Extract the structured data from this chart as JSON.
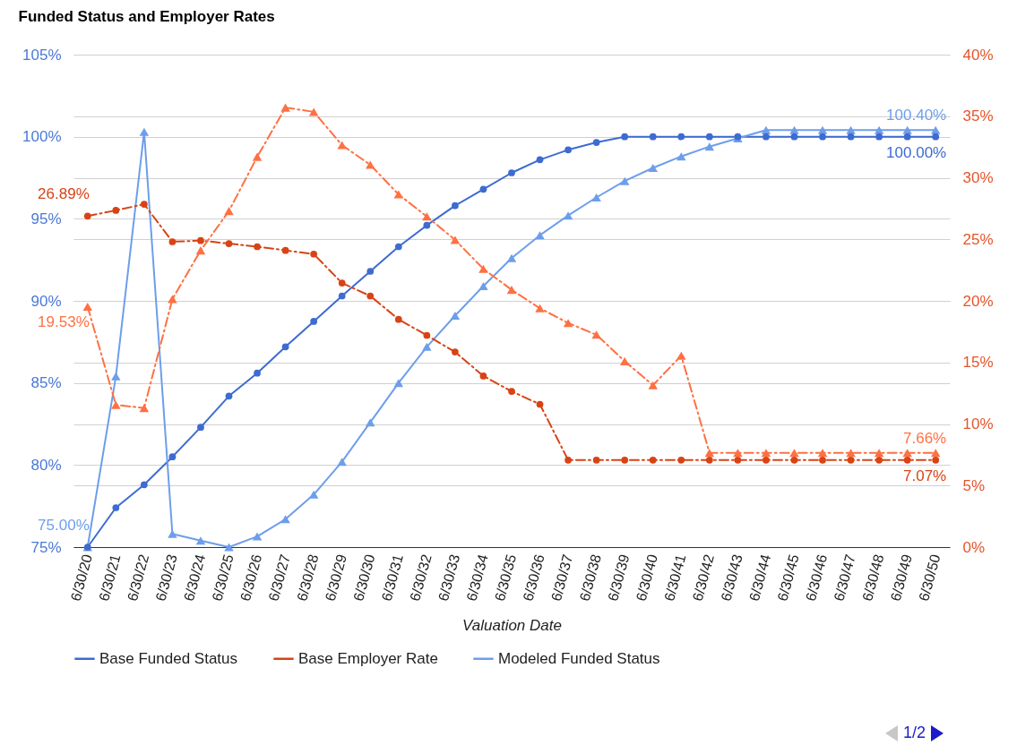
{
  "chart_data": {
    "type": "line",
    "title": "Funded Status and Employer Rates",
    "xlabel": "Valuation Date",
    "categories": [
      "6/30/20",
      "6/30/21",
      "6/30/22",
      "6/30/23",
      "6/30/24",
      "6/30/25",
      "6/30/26",
      "6/30/27",
      "6/30/28",
      "6/30/29",
      "6/30/30",
      "6/30/31",
      "6/30/32",
      "6/30/33",
      "6/30/34",
      "6/30/35",
      "6/30/36",
      "6/30/37",
      "6/30/38",
      "6/30/39",
      "6/30/40",
      "6/30/41",
      "6/30/42",
      "6/30/43",
      "6/30/44",
      "6/30/45",
      "6/30/46",
      "6/30/47",
      "6/30/48",
      "6/30/49",
      "6/30/50"
    ],
    "series": [
      {
        "name": "Base Funded Status",
        "color": "#3d6bd1",
        "marker": "circle",
        "line_style": "solid",
        "values": [
          75.0,
          77.4,
          78.8,
          80.5,
          82.3,
          84.2,
          85.6,
          87.2,
          88.75,
          90.3,
          91.8,
          93.3,
          94.6,
          95.8,
          96.8,
          97.8,
          98.6,
          99.2,
          99.65,
          100,
          100,
          100,
          100,
          100,
          100,
          100,
          100,
          100,
          100,
          100,
          100
        ],
        "value_labels": [
          null,
          null,
          null,
          null,
          null,
          null,
          null,
          null,
          null,
          null,
          null,
          null,
          null,
          null,
          null,
          null,
          null,
          null,
          null,
          null,
          null,
          null,
          null,
          null,
          null,
          null,
          null,
          null,
          null,
          null,
          "100.00%"
        ]
      },
      {
        "name": "Base Employer Rate",
        "color": "#d84315",
        "axis": "y2",
        "marker": "circle",
        "line_style": "dashed",
        "values": [
          26.89,
          27.35,
          27.85,
          24.8,
          24.9,
          24.65,
          24.4,
          24.1,
          23.8,
          21.45,
          20.4,
          18.5,
          17.2,
          15.85,
          13.9,
          12.65,
          11.6,
          7.07,
          7.07,
          7.07,
          7.07,
          7.07,
          7.07,
          7.07,
          7.07,
          7.07,
          7.07,
          7.07,
          7.07,
          7.07,
          7.07
        ],
        "value_labels": [
          "26.89%",
          null,
          null,
          null,
          null,
          null,
          null,
          null,
          null,
          null,
          null,
          null,
          null,
          null,
          null,
          null,
          null,
          null,
          null,
          null,
          null,
          null,
          null,
          null,
          null,
          null,
          null,
          null,
          null,
          null,
          "7.07%"
        ]
      },
      {
        "name": "Modeled Funded Status",
        "color": "#6d9eeb",
        "marker": "triangle",
        "line_style": "solid",
        "values": [
          75.0,
          85.4,
          100.3,
          75.8,
          75.4,
          75.0,
          75.65,
          76.7,
          78.2,
          80.2,
          82.6,
          85.0,
          87.2,
          89.1,
          90.9,
          92.6,
          94.0,
          95.2,
          96.3,
          97.3,
          98.1,
          98.8,
          99.4,
          99.9,
          100.4,
          100.4,
          100.4,
          100.4,
          100.4,
          100.4,
          100.4
        ],
        "value_labels": [
          "75.00%",
          null,
          null,
          null,
          null,
          null,
          null,
          null,
          null,
          null,
          null,
          null,
          null,
          null,
          null,
          null,
          null,
          null,
          null,
          null,
          null,
          null,
          null,
          null,
          null,
          null,
          null,
          null,
          null,
          null,
          "100.40%"
        ]
      },
      {
        "color": "#ff7043",
        "axis": "y2",
        "marker": "triangle",
        "line_style": "dashed",
        "values": [
          19.53,
          11.55,
          11.3,
          20.15,
          24.1,
          27.3,
          31.7,
          35.7,
          35.35,
          32.65,
          31.05,
          28.65,
          26.85,
          24.95,
          22.6,
          20.9,
          19.4,
          18.2,
          17.25,
          15.1,
          13.15,
          15.55,
          7.66,
          7.66,
          7.66,
          7.66,
          7.66,
          7.66,
          7.66,
          7.66,
          7.66
        ],
        "value_labels": [
          "19.53%",
          null,
          null,
          null,
          null,
          null,
          null,
          null,
          null,
          null,
          null,
          null,
          null,
          null,
          null,
          null,
          null,
          null,
          null,
          null,
          null,
          null,
          null,
          null,
          null,
          null,
          null,
          null,
          null,
          null,
          "7.66%"
        ]
      }
    ],
    "ylim": [
      75,
      105
    ],
    "yticks": [
      {
        "value": 75,
        "label": "75%"
      },
      {
        "value": 80,
        "label": "80%"
      },
      {
        "value": 85,
        "label": "85%"
      },
      {
        "value": 90,
        "label": "90%"
      },
      {
        "value": 95,
        "label": "95%"
      },
      {
        "value": 100,
        "label": "100%"
      },
      {
        "value": 105,
        "label": "105%"
      }
    ],
    "y2lim": [
      0,
      40
    ],
    "y2ticks": [
      {
        "value": 0,
        "label": "0%"
      },
      {
        "value": 5,
        "label": "5%"
      },
      {
        "value": 10,
        "label": "10%"
      },
      {
        "value": 15,
        "label": "15%"
      },
      {
        "value": 20,
        "label": "20%"
      },
      {
        "value": 25,
        "label": "25%"
      },
      {
        "value": 30,
        "label": "30%"
      },
      {
        "value": 35,
        "label": "35%"
      },
      {
        "value": 40,
        "label": "40%"
      }
    ],
    "grid": true,
    "legend": "bottom",
    "annotations": [
      "1/2"
    ]
  }
}
